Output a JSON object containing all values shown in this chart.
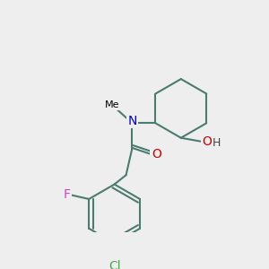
{
  "background_color": "#eeeeee",
  "bond_color": "#4a7c6f",
  "bond_width": 1.5,
  "atom_colors": {
    "N": "#0000cc",
    "O": "#cc0000",
    "F": "#cc44cc",
    "Cl": "#44aa44",
    "C": "#000000",
    "H": "#444444"
  },
  "font_size": 9,
  "label_font_size": 9
}
